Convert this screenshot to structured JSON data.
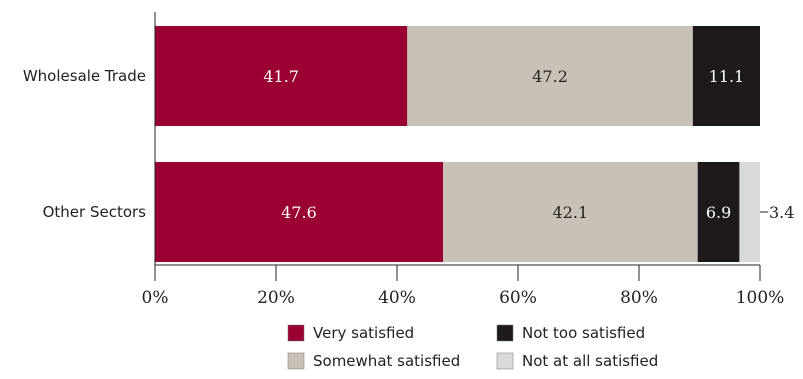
{
  "chart_data": {
    "type": "bar",
    "orientation": "horizontal",
    "stacked": true,
    "categories": [
      "Wholesale Trade",
      "Other Sectors"
    ],
    "series": [
      {
        "name": "Very satisfied",
        "values": [
          41.7,
          47.6
        ],
        "color": "#9b0032",
        "label_color": "#ffffff"
      },
      {
        "name": "Somewhat satisfied",
        "values": [
          47.2,
          42.1
        ],
        "color": "#c9c1b6",
        "label_color": "#222222"
      },
      {
        "name": "Not too satisfied",
        "values": [
          11.1,
          6.9
        ],
        "color": "#1e1a1b",
        "label_color": "#ffffff"
      },
      {
        "name": "Not at all satisfied",
        "values": [
          0,
          3.4
        ],
        "color": "#d9d9d9",
        "label_color": "#222222"
      }
    ],
    "data_labels": [
      [
        "41.7",
        "47.2",
        "11.1",
        ""
      ],
      [
        "47.6",
        "42.1",
        "6.9",
        "3.4"
      ]
    ],
    "x_ticks": [
      "0%",
      "20%",
      "40%",
      "60%",
      "80%",
      "100%"
    ],
    "xlim": [
      0,
      100
    ],
    "grid": false,
    "legend_position": "bottom"
  }
}
